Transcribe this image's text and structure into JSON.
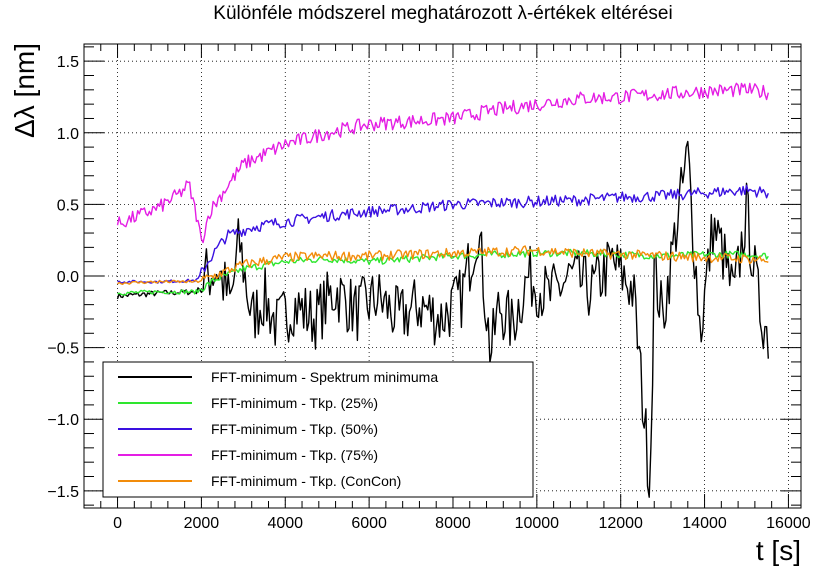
{
  "chart_data": {
    "type": "line",
    "title": "Különféle módszerel meghatározott λ-értékek eltérései",
    "xlabel": "t [s]",
    "ylabel": "Δλ [nm]",
    "xlim": [
      -800,
      16300
    ],
    "ylim": [
      -1.62,
      1.62
    ],
    "x_ticks": [
      0,
      2000,
      4000,
      6000,
      8000,
      10000,
      12000,
      14000,
      16000
    ],
    "x_tick_labels": [
      "0",
      "2000",
      "4000",
      "6000",
      "8000",
      "10000",
      "12000",
      "14000",
      "16000"
    ],
    "y_ticks": [
      -1.5,
      -1.0,
      -0.5,
      0.0,
      0.5,
      1.0,
      1.5
    ],
    "y_tick_labels": [
      "−1.5",
      "−1.0",
      "−0.5",
      "0.0",
      "0.5",
      "1.0",
      "1.5"
    ],
    "grid": true,
    "legend_position": "bottom-left",
    "series": [
      {
        "name": "FFT-minimum - Spektrum minimuma",
        "color": "#000000",
        "x": [
          0,
          1000,
          1900,
          2100,
          2400,
          2700,
          2900,
          3200,
          3500,
          3800,
          4200,
          4700,
          5200,
          5700,
          6200,
          6700,
          7200,
          7700,
          8200,
          8600,
          8900,
          9100,
          9400,
          9800,
          10300,
          10800,
          11300,
          11800,
          12300,
          12700,
          12800,
          13000,
          13300,
          13600,
          13900,
          14200,
          14400,
          14700,
          15000,
          15300,
          15550
        ],
        "y": [
          -0.14,
          -0.12,
          -0.11,
          0.0,
          0.05,
          -0.2,
          0.25,
          -0.3,
          -0.15,
          -0.35,
          -0.2,
          -0.3,
          -0.1,
          -0.25,
          -0.15,
          -0.3,
          -0.2,
          -0.3,
          -0.15,
          0.35,
          -0.55,
          -0.2,
          -0.35,
          0.0,
          -0.15,
          0.0,
          -0.1,
          0.1,
          -0.1,
          -1.45,
          0.05,
          -0.3,
          0.3,
          0.85,
          -0.4,
          0.35,
          0.2,
          -0.15,
          0.45,
          -0.2,
          -0.45
        ]
      },
      {
        "name": "FFT-minimum - Tkp. (25%)",
        "color": "#2ee62e",
        "x": [
          0,
          1000,
          1900,
          2300,
          3000,
          4000,
          5000,
          6000,
          7000,
          8000,
          9000,
          10000,
          11000,
          12000,
          13000,
          14000,
          15000,
          15550
        ],
        "y": [
          -0.12,
          -0.11,
          -0.11,
          -0.03,
          0.05,
          0.1,
          0.12,
          0.1,
          0.12,
          0.14,
          0.15,
          0.16,
          0.16,
          0.15,
          0.14,
          0.15,
          0.15,
          0.14
        ]
      },
      {
        "name": "FFT-minimum - Tkp. (50%)",
        "color": "#3a10e0",
        "x": [
          0,
          1000,
          1900,
          2200,
          2600,
          3200,
          4000,
          5000,
          6000,
          7000,
          8000,
          9000,
          10000,
          11000,
          12000,
          13000,
          14000,
          15000,
          15550
        ],
        "y": [
          -0.04,
          -0.04,
          -0.03,
          0.12,
          0.28,
          0.34,
          0.38,
          0.42,
          0.45,
          0.47,
          0.5,
          0.51,
          0.52,
          0.53,
          0.55,
          0.56,
          0.58,
          0.6,
          0.58
        ]
      },
      {
        "name": "FFT-minimum - Tkp. (75%)",
        "color": "#e41ee4",
        "x": [
          0,
          500,
          1000,
          1500,
          1700,
          1900,
          2000,
          2200,
          2600,
          3000,
          3500,
          4000,
          5000,
          6000,
          7000,
          8000,
          9000,
          10000,
          11000,
          12000,
          13000,
          14000,
          15000,
          15550
        ],
        "y": [
          0.36,
          0.42,
          0.48,
          0.58,
          0.64,
          0.4,
          0.24,
          0.45,
          0.62,
          0.78,
          0.85,
          0.92,
          1.0,
          1.06,
          1.08,
          1.1,
          1.16,
          1.2,
          1.24,
          1.25,
          1.27,
          1.29,
          1.3,
          1.28
        ]
      },
      {
        "name": "FFT-minimum - Tkp. (ConCon)",
        "color": "#f28c0a",
        "x": [
          0,
          1000,
          1900,
          2300,
          3000,
          4000,
          5000,
          6000,
          7000,
          8000,
          9000,
          10000,
          11000,
          12000,
          13000,
          14000,
          15000,
          15550
        ],
        "y": [
          -0.05,
          -0.04,
          -0.04,
          0.0,
          0.08,
          0.13,
          0.14,
          0.14,
          0.15,
          0.16,
          0.17,
          0.18,
          0.16,
          0.15,
          0.14,
          0.13,
          0.12,
          0.11
        ]
      }
    ]
  }
}
